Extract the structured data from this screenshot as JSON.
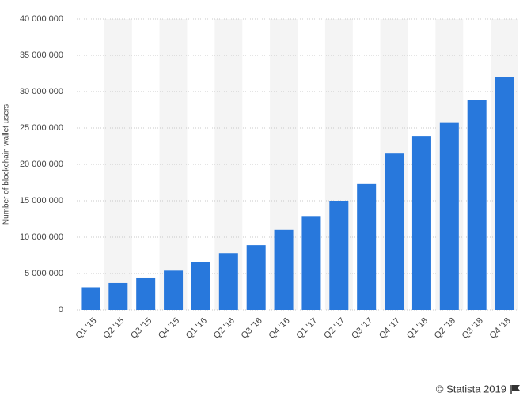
{
  "chart_data": {
    "type": "bar",
    "y_label": "Number of blockchain wallet users",
    "footer": "© Statista 2019",
    "categories": [
      "Q1 '15",
      "Q2 '15",
      "Q3 '15",
      "Q4 '15",
      "Q1 '16",
      "Q2 '16",
      "Q3 '16",
      "Q4 '16",
      "Q1 '17",
      "Q2 '17",
      "Q3 '17",
      "Q4 '17",
      "Q1 '18",
      "Q2 '18",
      "Q3 '18",
      "Q4 '18"
    ],
    "values": [
      3100000,
      3700000,
      4350000,
      5400000,
      6600000,
      7800000,
      8900000,
      11000000,
      12900000,
      15000000,
      17300000,
      21500000,
      23900000,
      25800000,
      28900000,
      32000000
    ],
    "color": "#2878dc",
    "ylim": [
      0,
      40000000
    ],
    "yticks": [
      0,
      {
        "value": 5000000,
        "label": "5 000 000"
      },
      {
        "value": 10000000,
        "label": "10 000 000"
      },
      {
        "value": 15000000,
        "label": "15 000 000"
      },
      {
        "value": 20000000,
        "label": "20 000 000"
      },
      {
        "value": 25000000,
        "label": "25 000 000"
      },
      {
        "value": 30000000,
        "label": "30 000 000"
      },
      {
        "value": 35000000,
        "label": "35 000 000"
      },
      {
        "value": 40000000,
        "label": "40 000 000"
      }
    ],
    "grid": true
  }
}
